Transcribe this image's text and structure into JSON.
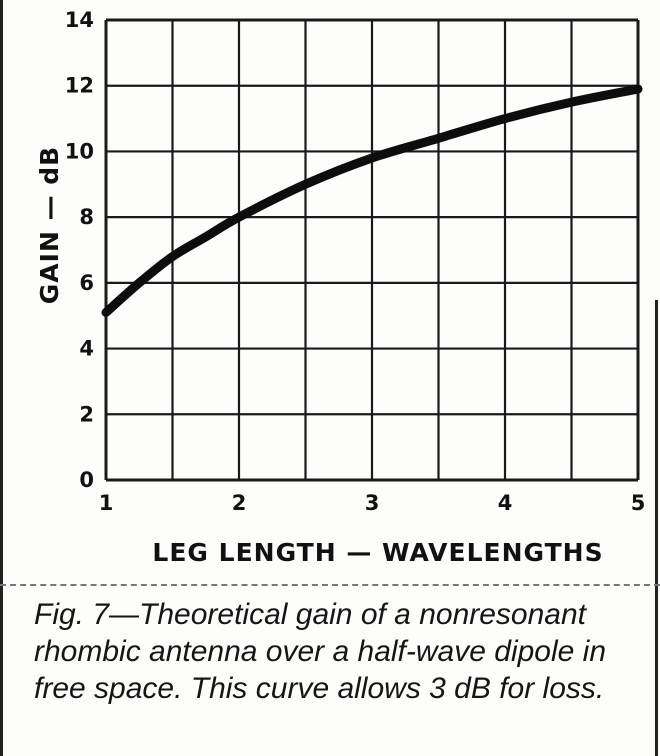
{
  "chart_data": {
    "type": "line",
    "xlabel": "LEG LENGTH — WAVELENGTHS",
    "ylabel": "GAIN — dB",
    "xlim": [
      1,
      5
    ],
    "ylim": [
      0,
      14
    ],
    "x_ticks": [
      "1",
      "2",
      "3",
      "4",
      "5"
    ],
    "y_ticks": [
      "0",
      "2",
      "4",
      "6",
      "8",
      "10",
      "12",
      "14"
    ],
    "grid": true,
    "series": [
      {
        "x": [
          1.0,
          1.25,
          1.5,
          1.75,
          2.0,
          2.5,
          3.0,
          3.5,
          4.0,
          4.5,
          5.0
        ],
        "y": [
          5.1,
          6.0,
          6.8,
          7.4,
          8.0,
          9.0,
          9.8,
          10.4,
          11.0,
          11.5,
          11.9
        ]
      }
    ]
  },
  "caption": "Fig. 7—Theoretical gain of a nonresonant rhombic antenna over a half-wave dipole in free space. This curve allows 3 dB for loss."
}
